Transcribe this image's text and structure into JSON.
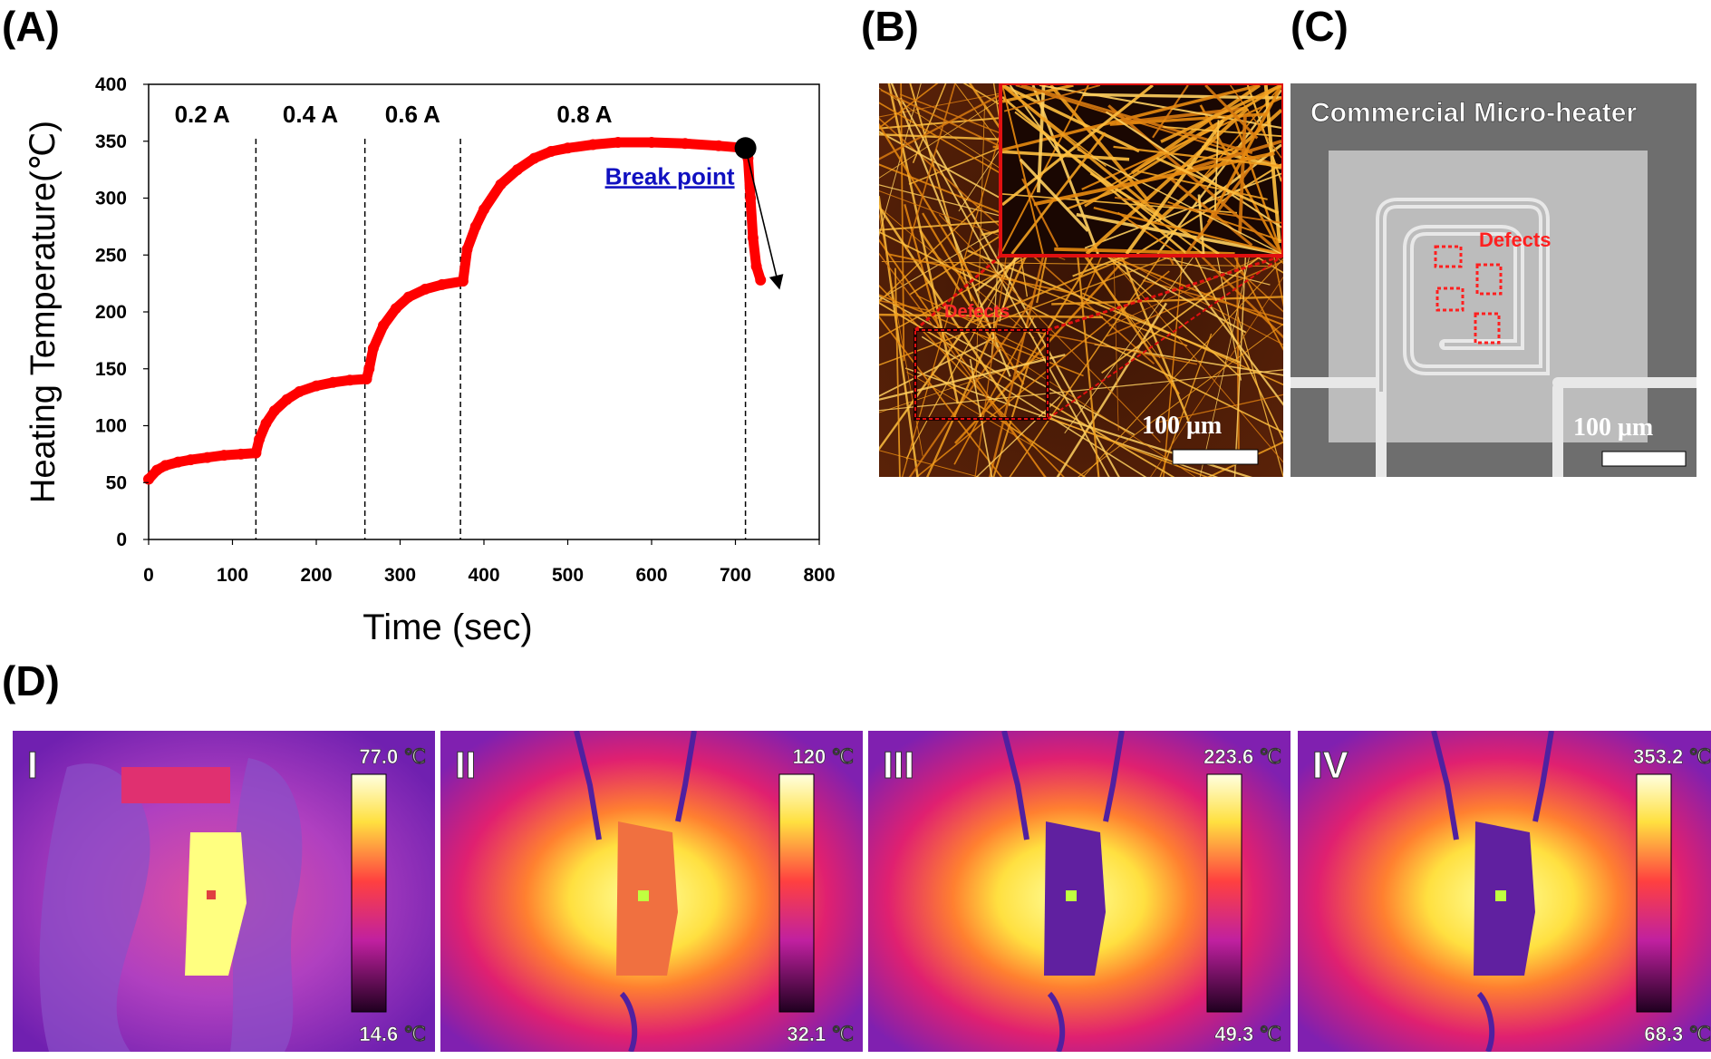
{
  "panels": {
    "a_label": "(A)",
    "b_label": "(B)",
    "c_label": "(C)",
    "d_label": "(D)"
  },
  "chart_data": {
    "type": "line",
    "title": "",
    "xlabel": "Time (sec)",
    "ylabel": "Heating Temperature(℃)",
    "xlim": [
      0,
      800
    ],
    "ylim": [
      0,
      400
    ],
    "xticks": [
      0,
      100,
      200,
      300,
      400,
      500,
      600,
      700,
      800
    ],
    "yticks": [
      0,
      50,
      100,
      150,
      200,
      250,
      300,
      350,
      400
    ],
    "grid": false,
    "series": [
      {
        "name": "Heating temperature",
        "color": "#ff0000",
        "x": [
          0,
          10,
          20,
          35,
          50,
          70,
          90,
          110,
          128,
          132,
          140,
          150,
          165,
          180,
          200,
          220,
          240,
          260,
          263,
          268,
          280,
          295,
          310,
          330,
          350,
          375,
          380,
          390,
          400,
          420,
          440,
          460,
          480,
          500,
          530,
          560,
          600,
          640,
          680,
          712,
          715,
          718,
          721,
          725,
          730
        ],
        "y": [
          53,
          61,
          65,
          68,
          70,
          72,
          74,
          75,
          76,
          88,
          102,
          113,
          123,
          130,
          135,
          138,
          140,
          141,
          150,
          168,
          188,
          203,
          213,
          220,
          224,
          227,
          255,
          275,
          290,
          312,
          325,
          335,
          341,
          344,
          347,
          349,
          349,
          348,
          346,
          344,
          335,
          300,
          265,
          240,
          228
        ]
      }
    ],
    "segments": [
      {
        "label": "0.2 A",
        "start": 0,
        "end": 128
      },
      {
        "label": "0.4 A",
        "start": 128,
        "end": 258
      },
      {
        "label": "0.6 A",
        "start": 258,
        "end": 372
      },
      {
        "label": "0.8 A",
        "start": 372,
        "end": 712
      }
    ],
    "vlines": [
      128,
      258,
      372,
      712
    ],
    "break_point": {
      "x": 712,
      "y": 344,
      "label": "Break point"
    },
    "arrow_to": {
      "x": 752,
      "y": 222
    }
  },
  "image_b": {
    "defects_label": "Defects",
    "scale_label": "100 μm"
  },
  "image_c": {
    "title": "Commercial Micro-heater",
    "defects_label": "Defects",
    "scale_label": "100 μm"
  },
  "thermal": [
    {
      "roman": "I",
      "max": "77.0",
      "min": "14.6",
      "unit": "℃"
    },
    {
      "roman": "II",
      "max": "120",
      "min": "32.1",
      "unit": "℃"
    },
    {
      "roman": "III",
      "max": "223.6",
      "min": "49.3",
      "unit": "℃"
    },
    {
      "roman": "IV",
      "max": "353.2",
      "min": "68.3",
      "unit": "℃"
    }
  ],
  "colors": {
    "line": "#ff0000",
    "break_text": "#1010c0",
    "defect": "#ff2020"
  }
}
